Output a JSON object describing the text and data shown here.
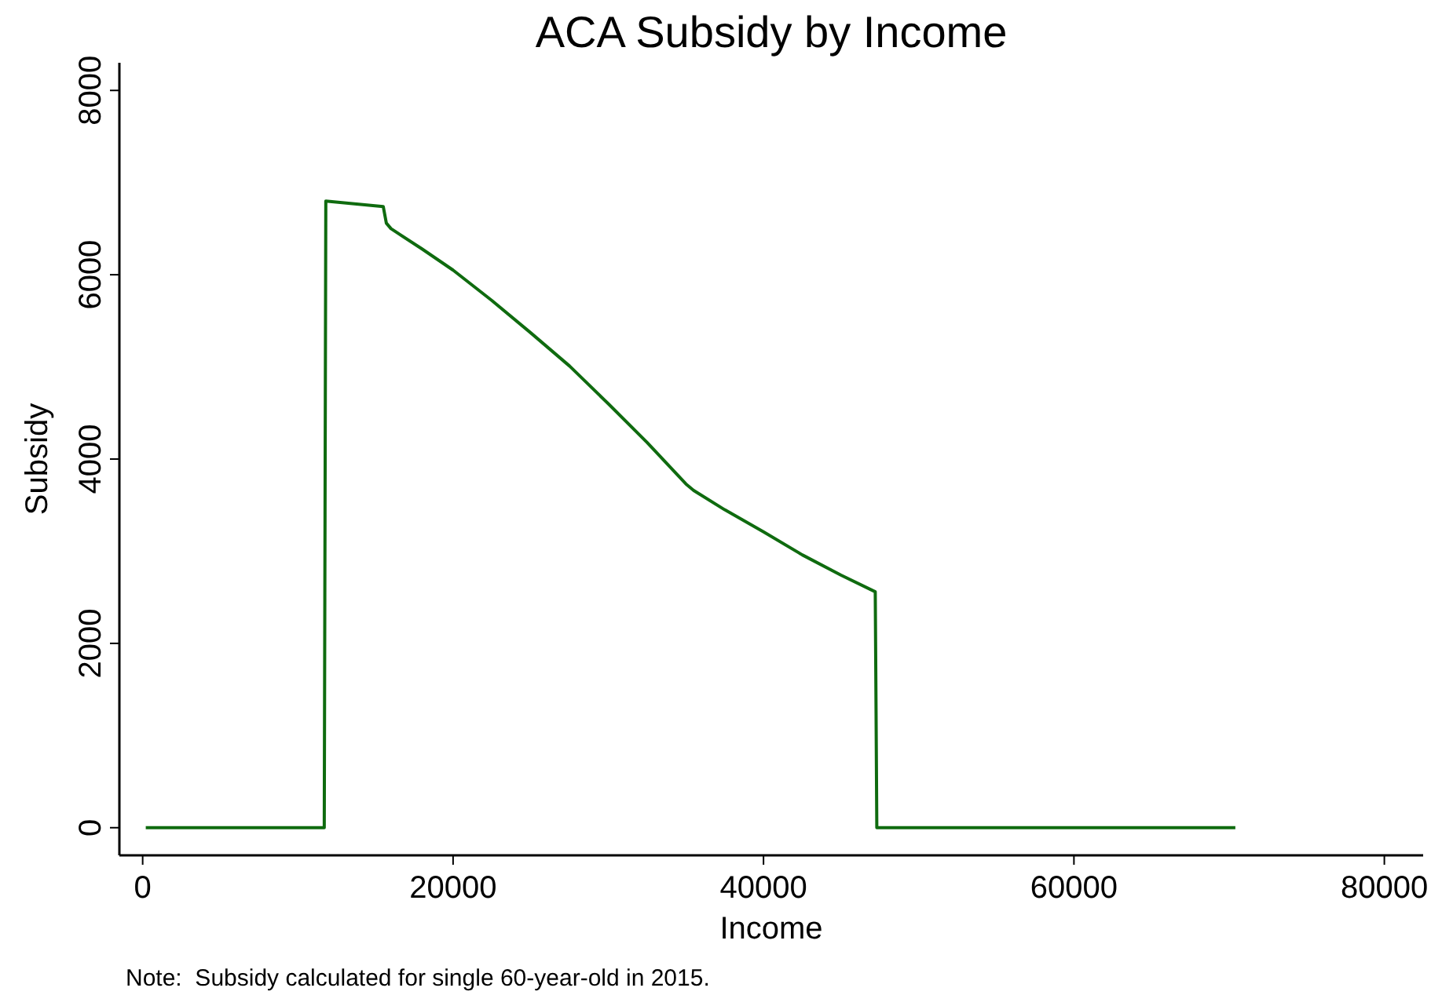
{
  "chart_data": {
    "type": "step",
    "title": "ACA Subsidy by Income",
    "xlabel": "Income",
    "ylabel": "Subsidy",
    "x": [
      200,
      11700,
      11750,
      11800,
      15500,
      15700,
      16000,
      18000,
      20000,
      22500,
      25000,
      27500,
      30000,
      32500,
      35000,
      35500,
      37500,
      40000,
      42500,
      45000,
      47200,
      47250,
      47300,
      60000,
      70400
    ],
    "series": [
      {
        "color": "#0f6b0f",
        "values": [
          0,
          0,
          3400,
          6800,
          6740,
          6560,
          6500,
          6280,
          6050,
          5720,
          5370,
          5010,
          4600,
          4180,
          3730,
          3660,
          3450,
          3210,
          2960,
          2740,
          2560,
          1300,
          0,
          0,
          0
        ]
      }
    ],
    "xlim": [
      -1500,
      82500
    ],
    "xticks": [
      0,
      20000,
      40000,
      60000,
      80000
    ],
    "ylim": [
      -300,
      8300
    ],
    "yticks": [
      0,
      2000,
      4000,
      6000,
      8000
    ],
    "grid": false,
    "annotations": [
      "Note:  Subsidy calculated for single 60-year-old in 2015."
    ]
  }
}
